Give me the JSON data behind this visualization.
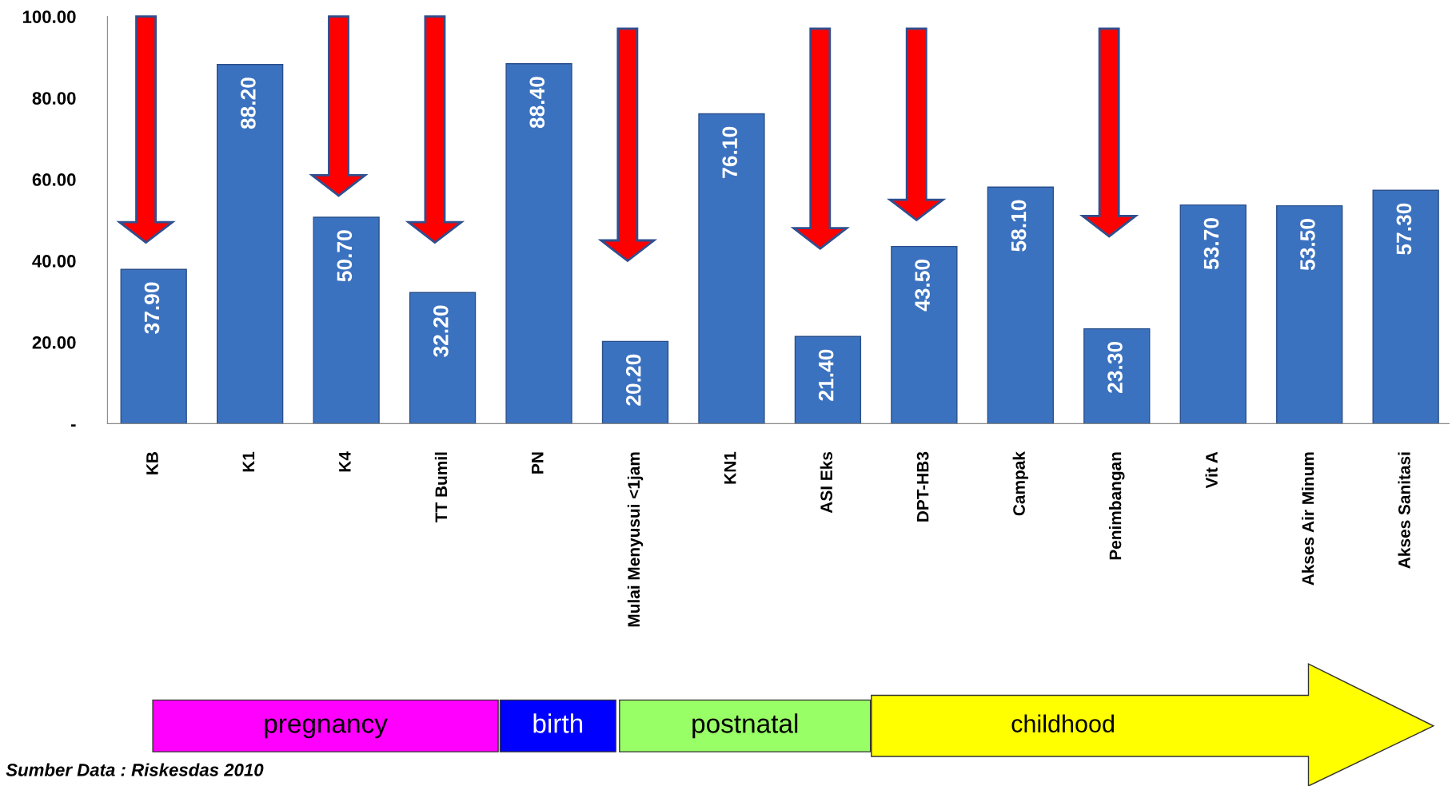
{
  "chart_data": {
    "type": "bar",
    "categories": [
      "KB",
      "K1",
      "K4",
      "TT Bumil",
      "PN",
      "Mulai Menyusui <1jam",
      "KN1",
      "ASI Eks",
      "DPT-HB3",
      "Campak",
      "Penimbangan",
      "Vit A",
      "Akses Air Minum",
      "Akses Sanitasi"
    ],
    "values": [
      37.9,
      88.2,
      50.7,
      32.2,
      88.4,
      20.2,
      76.1,
      21.4,
      43.5,
      58.1,
      23.3,
      53.7,
      53.5,
      57.3
    ],
    "value_labels": [
      "37.90",
      "88.20",
      "50.70",
      "32.20",
      "88.40",
      "20.20",
      "76.10",
      "21.40",
      "43.50",
      "58.10",
      "23.30",
      "53.70",
      "53.50",
      "57.30"
    ],
    "color": "#3b72c0",
    "ylim": [
      0,
      100
    ],
    "yticks": [
      {
        "value": 0,
        "label": "-"
      },
      {
        "value": 20,
        "label": "20.00"
      },
      {
        "value": 40,
        "label": "40.00"
      },
      {
        "value": 60,
        "label": "60.00"
      },
      {
        "value": 80,
        "label": "80.00"
      },
      {
        "value": 100,
        "label": "100.00"
      }
    ],
    "grid": false,
    "legend": false,
    "annotations": [
      "pregnancy",
      "birth",
      "postnatal",
      "childhood",
      "Sumber Data : Riskesdas 2010"
    ]
  }
}
